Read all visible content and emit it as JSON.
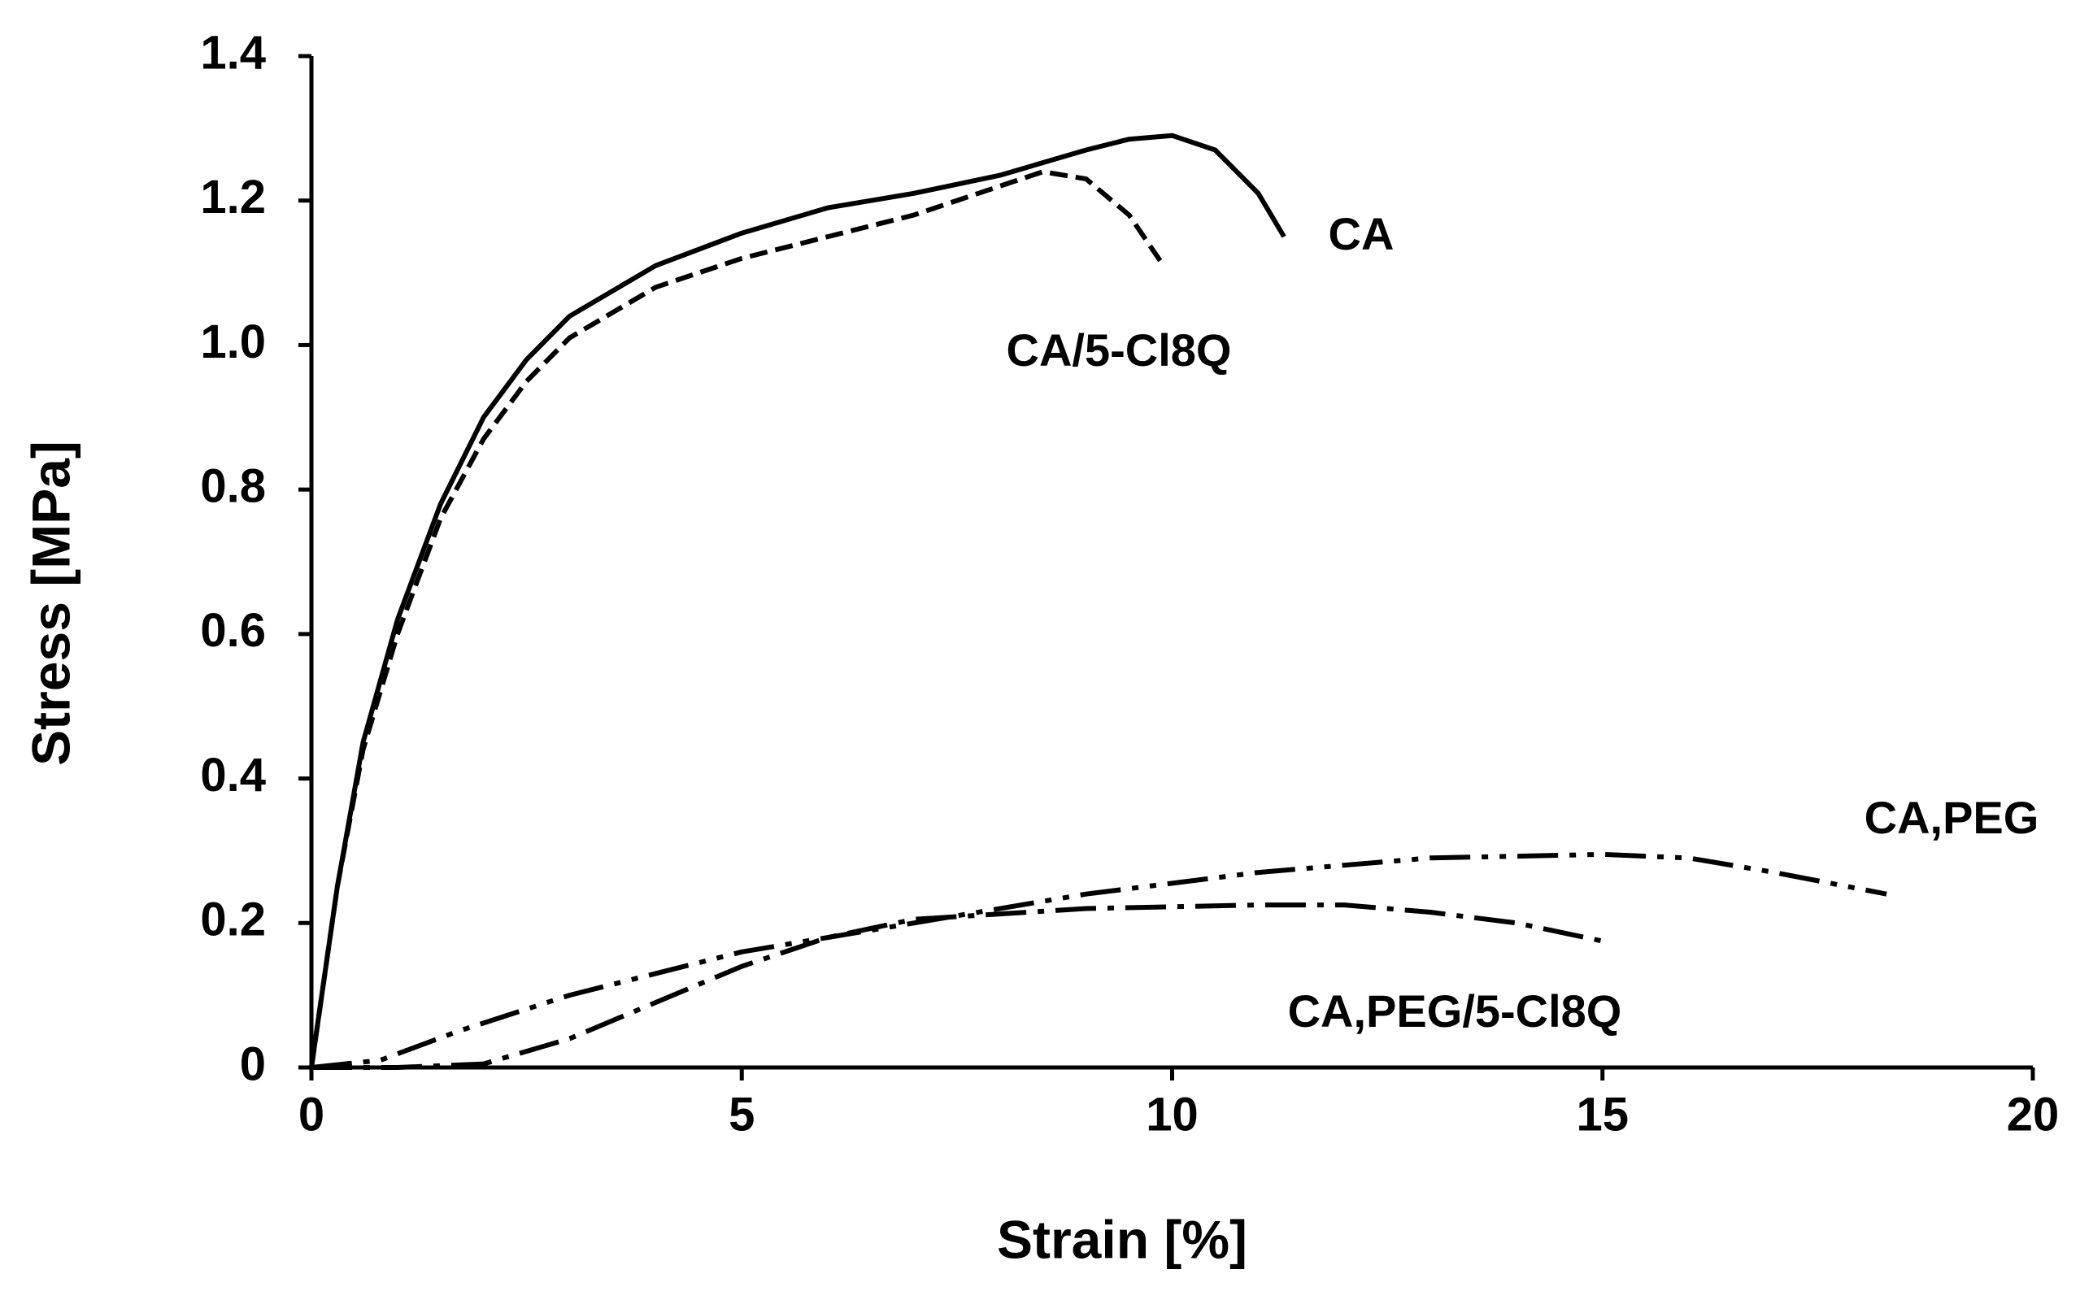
{
  "chart_data": {
    "type": "line",
    "x_label": "Strain [%]",
    "y_label": "Stress [MPa]",
    "xlim": [
      0,
      20
    ],
    "xticks": [
      0,
      5,
      10,
      15,
      20
    ],
    "ylim": [
      0,
      1.4
    ],
    "yticks": [
      0,
      0.2,
      0.4,
      0.6,
      0.8,
      {
        "value": 1,
        "label": "1.0"
      },
      1.2,
      1.4
    ],
    "grid": false,
    "series": [
      {
        "name": "CA",
        "color": "#000000",
        "dash": "solid",
        "x": [
          0,
          0.3,
          0.6,
          1,
          1.5,
          2,
          2.5,
          3,
          4,
          5,
          6,
          7,
          8,
          9,
          9.5,
          10,
          10.5,
          11,
          11.3
        ],
        "values": [
          0,
          0.25,
          0.45,
          0.62,
          0.78,
          0.9,
          0.98,
          1.04,
          1.11,
          1.155,
          1.19,
          1.21,
          1.235,
          1.27,
          1.285,
          1.29,
          1.27,
          1.21,
          1.15
        ]
      },
      {
        "name": "CA/5-Cl8Q",
        "color": "#000000",
        "dash": "dashed",
        "x": [
          0,
          0.3,
          0.6,
          1,
          1.5,
          2,
          2.5,
          3,
          4,
          5,
          6,
          7,
          8,
          8.5,
          9,
          9.5,
          9.9
        ],
        "values": [
          0,
          0.25,
          0.44,
          0.6,
          0.76,
          0.87,
          0.95,
          1.01,
          1.08,
          1.12,
          1.15,
          1.18,
          1.22,
          1.24,
          1.23,
          1.18,
          1.11
        ]
      },
      {
        "name": "CA,PEG",
        "color": "#000000",
        "dash": "dashdotdot",
        "x": [
          0,
          0.8,
          1.7,
          3,
          5,
          7,
          9,
          11,
          13,
          15,
          16,
          17,
          18.3
        ],
        "values": [
          0,
          0.01,
          0.05,
          0.1,
          0.16,
          0.2,
          0.24,
          0.27,
          0.29,
          0.295,
          0.29,
          0.27,
          0.24
        ]
      },
      {
        "name": "CA,PEG/5-Cl8Q",
        "color": "#000000",
        "dash": "dashdot",
        "x": [
          0,
          1,
          2,
          3,
          4,
          5,
          6,
          7,
          9,
          11,
          12,
          13,
          14,
          15
        ],
        "values": [
          0,
          0,
          0.005,
          0.04,
          0.09,
          0.14,
          0.18,
          0.205,
          0.22,
          0.225,
          0.225,
          0.215,
          0.2,
          0.175
        ]
      }
    ]
  }
}
